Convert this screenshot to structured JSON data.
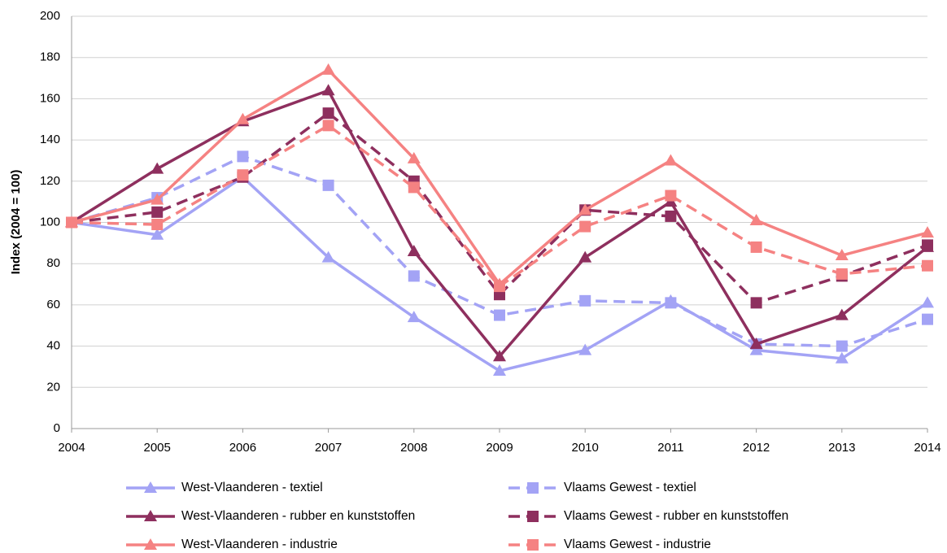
{
  "chart_data": {
    "type": "line",
    "y_label": "Index (2004 = 100)",
    "categories": [
      "2004",
      "2005",
      "2006",
      "2007",
      "2008",
      "2009",
      "2010",
      "2011",
      "2012",
      "2013",
      "2014"
    ],
    "ylim": [
      0,
      200
    ],
    "yticks": [
      0,
      20,
      40,
      60,
      80,
      100,
      120,
      140,
      160,
      180,
      200
    ],
    "grid": true,
    "series": [
      {
        "name": "West-Vlaanderen - textiel",
        "color": "#a3a3f5",
        "line_style": "solid",
        "marker": "triangle",
        "values": [
          100,
          94,
          122,
          83,
          54,
          28,
          38,
          62,
          38,
          34,
          61
        ]
      },
      {
        "name": "Vlaams Gewest - textiel",
        "color": "#a3a3f5",
        "line_style": "dashed",
        "marker": "square",
        "values": [
          100,
          112,
          132,
          118,
          74,
          55,
          62,
          61,
          41,
          40,
          53
        ]
      },
      {
        "name": "West-Vlaanderen - rubber en kunststoffen",
        "color": "#8e2f5e",
        "line_style": "solid",
        "marker": "triangle",
        "values": [
          100,
          126,
          149,
          164,
          86,
          35,
          83,
          110,
          41,
          55,
          88
        ]
      },
      {
        "name": "Vlaams Gewest - rubber en kunststoffen",
        "color": "#8e2f5e",
        "line_style": "dashed",
        "marker": "square",
        "values": [
          100,
          105,
          122,
          153,
          120,
          65,
          106,
          103,
          61,
          74,
          89
        ]
      },
      {
        "name": "West-Vlaanderen - industrie",
        "color": "#f58282",
        "line_style": "solid",
        "marker": "triangle",
        "values": [
          100,
          111,
          150,
          174,
          131,
          70,
          106,
          130,
          101,
          84,
          95
        ]
      },
      {
        "name": "Vlaams Gewest - industrie",
        "color": "#f58282",
        "line_style": "dashed",
        "marker": "square",
        "values": [
          100,
          99,
          123,
          147,
          117,
          69,
          98,
          113,
          88,
          75,
          79
        ]
      }
    ]
  }
}
